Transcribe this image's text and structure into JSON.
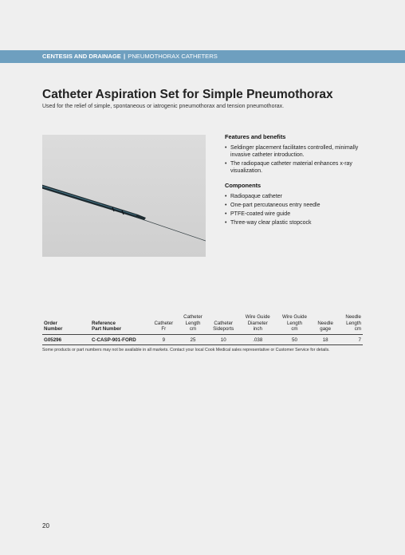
{
  "header": {
    "category": "CENTESIS AND DRAINAGE",
    "separator": "|",
    "subcategory": "PNEUMOTHORAX CATHETERS"
  },
  "product": {
    "title": "Catheter Aspiration Set for Simple Pneumothorax",
    "description": "Used for the relief of simple, spontaneous or iatrogenic pneumothorax and tension pneumothorax."
  },
  "features": {
    "heading": "Features and benefits",
    "items": [
      "Seldinger placement facilitates controlled, minimally invasive catheter introduction.",
      "The radiopaque catheter material enhances x-ray visualization."
    ]
  },
  "components": {
    "heading": "Components",
    "items": [
      "Radiopaque catheter",
      "One-part percutaneous entry needle",
      "PTFE-coated wire guide",
      "Three-way clear plastic stopcock"
    ]
  },
  "table": {
    "headers": {
      "order_1": "Order",
      "order_2": "Number",
      "ref_1": "Reference",
      "ref_2": "Part Number",
      "fr_1": "Catheter",
      "fr_2": "Fr",
      "len_1": "Catheter",
      "len_2": "Length",
      "len_3": "cm",
      "side_1": "Catheter",
      "side_2": "Sideports",
      "wdia_1": "Wire Guide",
      "wdia_2": "Diameter",
      "wdia_3": "inch",
      "wlen_1": "Wire Guide",
      "wlen_2": "Length",
      "wlen_3": "cm",
      "ng_1": "Needle",
      "ng_2": "gage",
      "nl_1": "Needle",
      "nl_2": "Length",
      "nl_3": "cm"
    },
    "rows": [
      {
        "order": "G05296",
        "reference": "C-CASP-901-FORD",
        "fr": "9",
        "length": "25",
        "sideports": "10",
        "wire_diameter": ".038",
        "wire_length": "50",
        "needle_gage": "18",
        "needle_length": "7"
      }
    ]
  },
  "footnote": "Some products or part numbers may not be available in all markets. Contact your local Cook Medical sales representative or Customer Service for details.",
  "page_number": "20"
}
